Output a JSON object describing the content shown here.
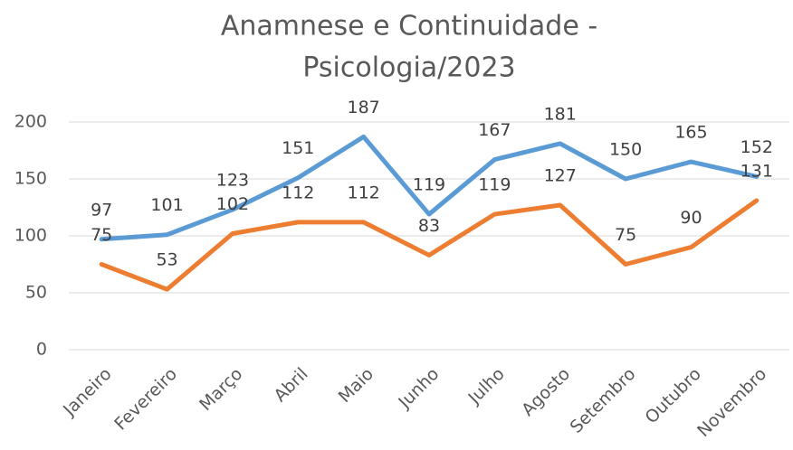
{
  "chart_data": {
    "type": "line",
    "title": [
      "Anamnese e Continuidade -",
      "Psicologia/2023"
    ],
    "categories": [
      "Janeiro",
      "Fevereiro",
      "Março",
      "Abril",
      "Maio",
      "Junho",
      "Julho",
      "Agosto",
      "Setembro",
      "Outubro",
      "Novembro"
    ],
    "series": [
      {
        "color": "#5b9bd5",
        "values": [
          97,
          101,
          123,
          151,
          187,
          119,
          167,
          181,
          150,
          165,
          152
        ]
      },
      {
        "color": "#ed7d31",
        "values": [
          75,
          53,
          102,
          112,
          112,
          83,
          119,
          127,
          75,
          90,
          131
        ]
      }
    ],
    "ylim": [
      0,
      200
    ],
    "yticks": [
      0,
      50,
      100,
      150,
      200
    ],
    "grid": true,
    "data_labels": true
  }
}
